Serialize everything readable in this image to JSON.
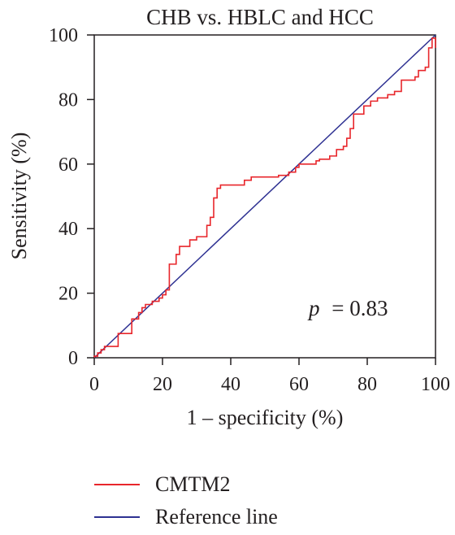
{
  "chart_data": {
    "type": "line",
    "title": "CHB vs. HBLC and HCC",
    "xlabel": "1 – specificity (%)",
    "ylabel": "Sensitivity (%)",
    "xlim": [
      0,
      100
    ],
    "ylim": [
      0,
      100
    ],
    "x_ticks": [
      0,
      20,
      40,
      60,
      80,
      100
    ],
    "y_ticks": [
      0,
      20,
      40,
      60,
      80,
      100
    ],
    "annotation": {
      "p_symbol": "p",
      "p_text": "= 0.83"
    },
    "legend_position": "bottom-left",
    "series": [
      {
        "name": "CMTM2",
        "color": "#e8262b",
        "points": [
          [
            0,
            0
          ],
          [
            0,
            0.5
          ],
          [
            1,
            0.5
          ],
          [
            1,
            1.5
          ],
          [
            2,
            1.5
          ],
          [
            2,
            2.5
          ],
          [
            3,
            2.5
          ],
          [
            3,
            3.5
          ],
          [
            7,
            3.5
          ],
          [
            7,
            7.5
          ],
          [
            11,
            7.5
          ],
          [
            11,
            12
          ],
          [
            13,
            12
          ],
          [
            13,
            14
          ],
          [
            14,
            14
          ],
          [
            14,
            15.5
          ],
          [
            15,
            15.5
          ],
          [
            15,
            16.5
          ],
          [
            17,
            16.5
          ],
          [
            17,
            17.5
          ],
          [
            19,
            17.5
          ],
          [
            19,
            18.5
          ],
          [
            20,
            18.5
          ],
          [
            20,
            19.5
          ],
          [
            21,
            19.5
          ],
          [
            21,
            21
          ],
          [
            22,
            21
          ],
          [
            22,
            29
          ],
          [
            24,
            29
          ],
          [
            24,
            32
          ],
          [
            25,
            32
          ],
          [
            25,
            34.5
          ],
          [
            28,
            34.5
          ],
          [
            28,
            36.5
          ],
          [
            30,
            36.5
          ],
          [
            30,
            37.5
          ],
          [
            33,
            37.5
          ],
          [
            33,
            41
          ],
          [
            34,
            41
          ],
          [
            34,
            43.5
          ],
          [
            35,
            43.5
          ],
          [
            35,
            49.5
          ],
          [
            36,
            49.5
          ],
          [
            36,
            52.5
          ],
          [
            37,
            52.5
          ],
          [
            37,
            53.5
          ],
          [
            44,
            53.5
          ],
          [
            44,
            55
          ],
          [
            46,
            55
          ],
          [
            46,
            56
          ],
          [
            54,
            56
          ],
          [
            54,
            56.5
          ],
          [
            57,
            56.5
          ],
          [
            57,
            57.5
          ],
          [
            59,
            57.5
          ],
          [
            59,
            59
          ],
          [
            60,
            59
          ],
          [
            60,
            60
          ],
          [
            65,
            60
          ],
          [
            65,
            61
          ],
          [
            66,
            61
          ],
          [
            66,
            61.5
          ],
          [
            69,
            61.5
          ],
          [
            69,
            62.5
          ],
          [
            71,
            62.5
          ],
          [
            71,
            64.5
          ],
          [
            73,
            64.5
          ],
          [
            73,
            65.5
          ],
          [
            74,
            65.5
          ],
          [
            74,
            68
          ],
          [
            75,
            68
          ],
          [
            75,
            71
          ],
          [
            76,
            71
          ],
          [
            76,
            75.5
          ],
          [
            79,
            75.5
          ],
          [
            79,
            78
          ],
          [
            81,
            78
          ],
          [
            81,
            79.5
          ],
          [
            83,
            79.5
          ],
          [
            83,
            80.5
          ],
          [
            86,
            80.5
          ],
          [
            86,
            81.5
          ],
          [
            88,
            81.5
          ],
          [
            88,
            82.5
          ],
          [
            90,
            82.5
          ],
          [
            90,
            86
          ],
          [
            94,
            86
          ],
          [
            94,
            87
          ],
          [
            95,
            87
          ],
          [
            95,
            89
          ],
          [
            97,
            89
          ],
          [
            97,
            90
          ],
          [
            98,
            90
          ],
          [
            98,
            96
          ],
          [
            99,
            96
          ],
          [
            99,
            99
          ],
          [
            100,
            99
          ],
          [
            100,
            96
          ]
        ]
      },
      {
        "name": "Reference line",
        "color": "#2e3192",
        "points": [
          [
            0,
            0
          ],
          [
            100,
            100
          ]
        ]
      }
    ]
  }
}
